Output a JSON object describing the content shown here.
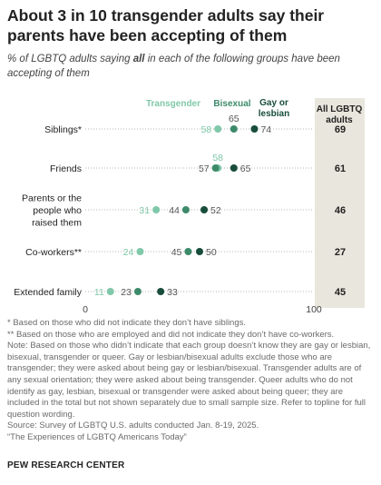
{
  "title": "About 3 in 10 transgender adults say their parents have been accepting of them",
  "subtitle_before": "% of LGBTQ adults saying ",
  "subtitle_bold": "all",
  "subtitle_after": " in each of the following groups have been accepting of them",
  "colors": {
    "transgender": "#7fc8a9",
    "bisexual": "#3d8a6a",
    "gay_or_lesbian": "#174d3a",
    "total_column_bg": "#e9e6dd",
    "dotted_line": "#b5b5b5"
  },
  "chart_data": {
    "type": "dot",
    "xlim": [
      0,
      100
    ],
    "axis_ticks": [
      "0",
      "100"
    ],
    "series_labels": {
      "transgender": "Transgender",
      "bisexual": "Bisexual",
      "gay_or_lesbian_line1": "Gay or",
      "gay_or_lesbian_line2": "lesbian"
    },
    "total_header": [
      "All LGBTQ",
      "adults"
    ],
    "categories": [
      {
        "label": [
          "Siblings*"
        ],
        "transgender": 58,
        "bisexual": 65,
        "gay_or_lesbian": 74,
        "all": 69
      },
      {
        "label": [
          "Friends"
        ],
        "transgender": 58,
        "bisexual": 57,
        "gay_or_lesbian": 65,
        "all": 61
      },
      {
        "label": [
          "Parents or the",
          "people who",
          "raised them"
        ],
        "transgender": 31,
        "bisexual": 44,
        "gay_or_lesbian": 52,
        "all": 46
      },
      {
        "label": [
          "Co-workers**"
        ],
        "transgender": 24,
        "bisexual": 45,
        "gay_or_lesbian": 50,
        "all": 27
      },
      {
        "label": [
          "Extended family"
        ],
        "transgender": 11,
        "bisexual": 23,
        "gay_or_lesbian": 33,
        "all": 45
      }
    ]
  },
  "notes": [
    "* Based on those who did not indicate they don’t have siblings.",
    "** Based on those who are employed and did not indicate they don’t have co-workers.",
    "Note: Based on those who didn’t indicate that each group doesn’t know they are gay or lesbian, bisexual, transgender or queer. Gay or lesbian/bisexual adults exclude those who are transgender; they were asked about being gay or lesbian/bisexual. Transgender adults are of any sexual orientation; they were asked about being transgender. Queer adults who do not identify as gay, lesbian, bisexual or transgender were asked about being queer; they are included in the total but not shown separately due to small sample size. Refer to topline for full question wording.",
    "Source: Survey of LGBTQ U.S. adults conducted Jan. 8-19, 2025.",
    "“The Experiences of LGBTQ Americans Today”"
  ],
  "brand": "PEW RESEARCH CENTER"
}
